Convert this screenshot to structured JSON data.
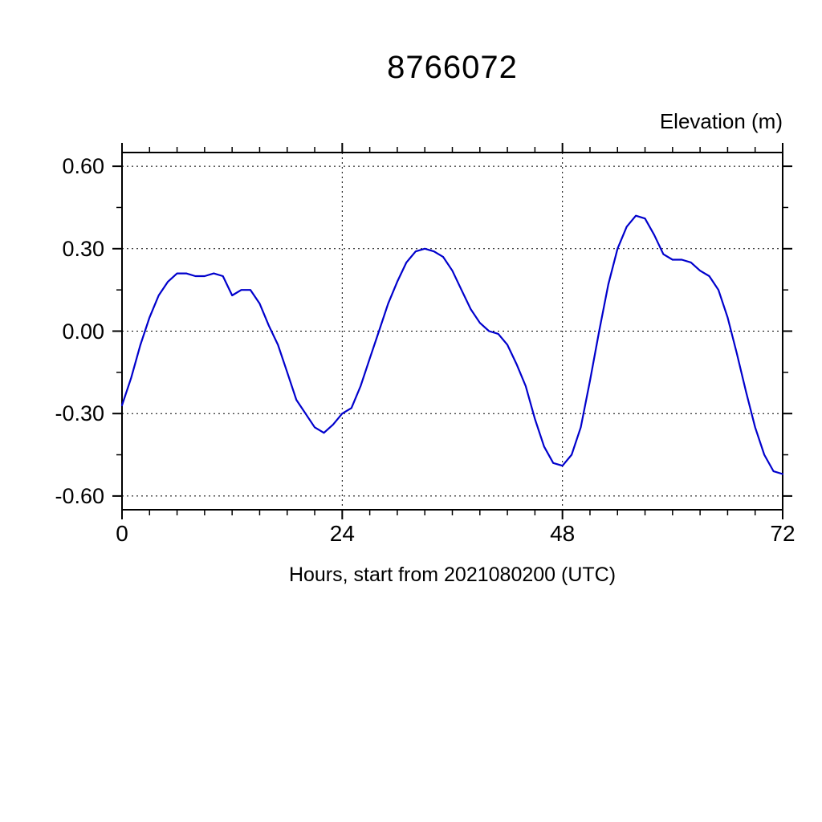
{
  "chart_data": {
    "type": "line",
    "title": "8766072",
    "ylabel": "Elevation (m)",
    "xlabel": "Hours, start from 2021080200 (UTC)",
    "xlim": [
      0,
      72
    ],
    "ylim": [
      -0.65,
      0.65
    ],
    "xticks": [
      0,
      24,
      48,
      72
    ],
    "yticks": [
      0.6,
      0.3,
      0.0,
      -0.3,
      -0.6
    ],
    "x_minor_step": 3,
    "y_minor_step": 0.15,
    "grid": true,
    "legend": "none",
    "line_color": "#0000cc",
    "series": [
      {
        "name": "elevation",
        "x": [
          0,
          1,
          2,
          3,
          4,
          5,
          6,
          7,
          8,
          9,
          10,
          11,
          12,
          13,
          14,
          15,
          16,
          17,
          18,
          19,
          20,
          21,
          22,
          23,
          24,
          25,
          26,
          27,
          28,
          29,
          30,
          31,
          32,
          33,
          34,
          35,
          36,
          37,
          38,
          39,
          40,
          41,
          42,
          43,
          44,
          45,
          46,
          47,
          48,
          49,
          50,
          51,
          52,
          53,
          54,
          55,
          56,
          57,
          58,
          59,
          60,
          61,
          62,
          63,
          64,
          65,
          66,
          67,
          68,
          69,
          70,
          71,
          72
        ],
        "y": [
          -0.27,
          -0.17,
          -0.05,
          0.05,
          0.13,
          0.18,
          0.21,
          0.21,
          0.2,
          0.2,
          0.21,
          0.2,
          0.13,
          0.15,
          0.15,
          0.1,
          0.02,
          -0.05,
          -0.15,
          -0.25,
          -0.3,
          -0.35,
          -0.37,
          -0.34,
          -0.3,
          -0.28,
          -0.2,
          -0.1,
          0.0,
          0.1,
          0.18,
          0.25,
          0.29,
          0.3,
          0.29,
          0.27,
          0.22,
          0.15,
          0.08,
          0.03,
          0.0,
          -0.01,
          -0.05,
          -0.12,
          -0.2,
          -0.32,
          -0.42,
          -0.48,
          -0.49,
          -0.45,
          -0.35,
          -0.18,
          0.0,
          0.17,
          0.3,
          0.38,
          0.42,
          0.41,
          0.35,
          0.28,
          0.26,
          0.26,
          0.25,
          0.22,
          0.2,
          0.15,
          0.05,
          -0.08,
          -0.22,
          -0.35,
          -0.45,
          -0.51,
          -0.52
        ]
      }
    ]
  }
}
